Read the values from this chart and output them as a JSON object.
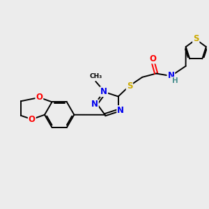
{
  "bg_color": "#ececec",
  "atom_colors": {
    "C": "#000000",
    "N": "#0000ee",
    "O": "#ff0000",
    "S": "#ccaa00",
    "H": "#4a9090"
  },
  "bond_color": "#000000",
  "figsize": [
    3.0,
    3.0
  ],
  "dpi": 100
}
